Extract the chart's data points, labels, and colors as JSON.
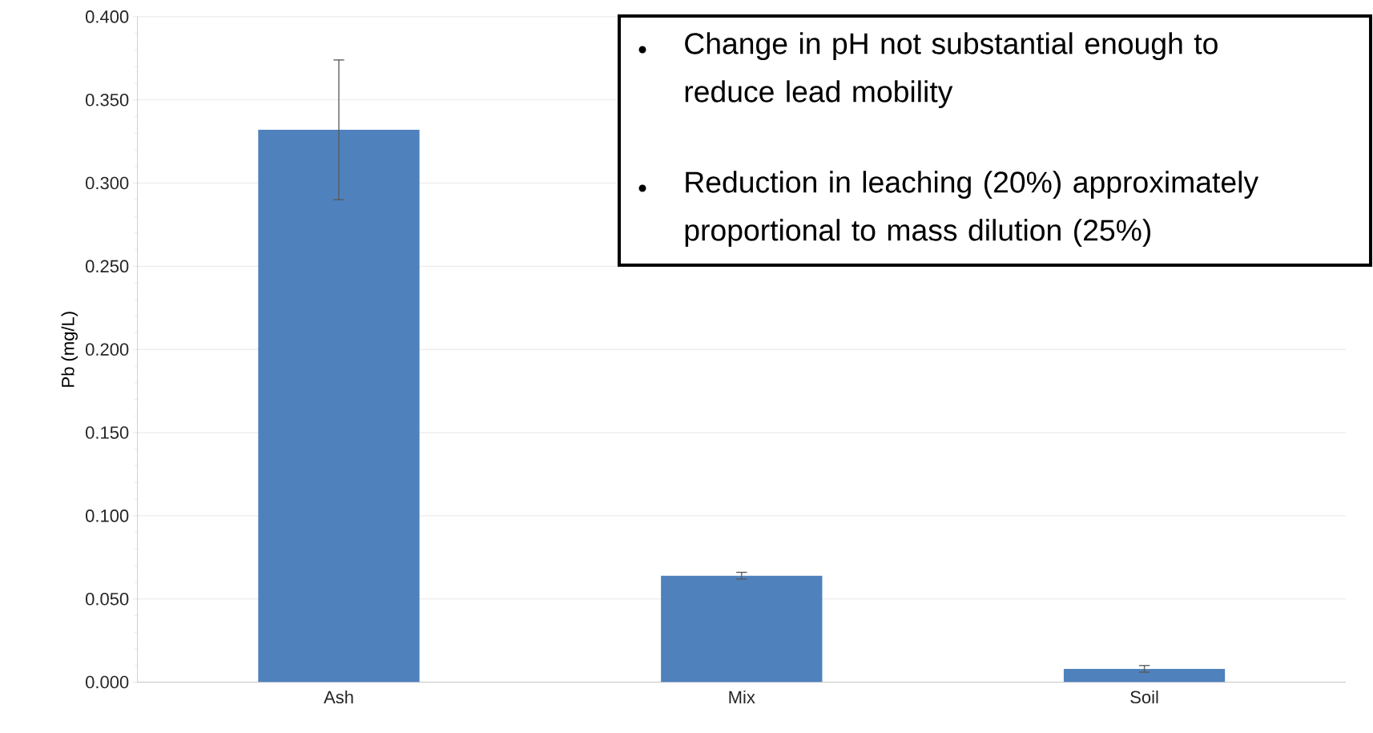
{
  "chart_data": {
    "type": "bar",
    "ylabel": "Pb (mg/L)",
    "categories": [
      "Ash",
      "Mix",
      "Soil"
    ],
    "values": [
      0.332,
      0.064,
      0.008
    ],
    "errors": [
      0.042,
      0.002,
      0.002
    ],
    "color": "#4f81bd",
    "ylim": [
      0,
      0.4
    ],
    "yticks": [
      {
        "value": 0,
        "label": "0.000"
      },
      {
        "value": 0.05,
        "label": "0.050"
      },
      {
        "value": 0.1,
        "label": "0.100"
      },
      {
        "value": 0.15,
        "label": "0.150"
      },
      {
        "value": 0.2,
        "label": "0.200"
      },
      {
        "value": 0.25,
        "label": "0.250"
      },
      {
        "value": 0.3,
        "label": "0.300"
      },
      {
        "value": 0.35,
        "label": "0.350"
      },
      {
        "value": 0.4,
        "label": "0.400"
      }
    ],
    "grid": "y",
    "annotations": [
      "Change in pH not substantial enough to reduce lead mobility",
      "Reduction in leaching (20%) approximately proportional to mass dilution (25%)"
    ]
  }
}
